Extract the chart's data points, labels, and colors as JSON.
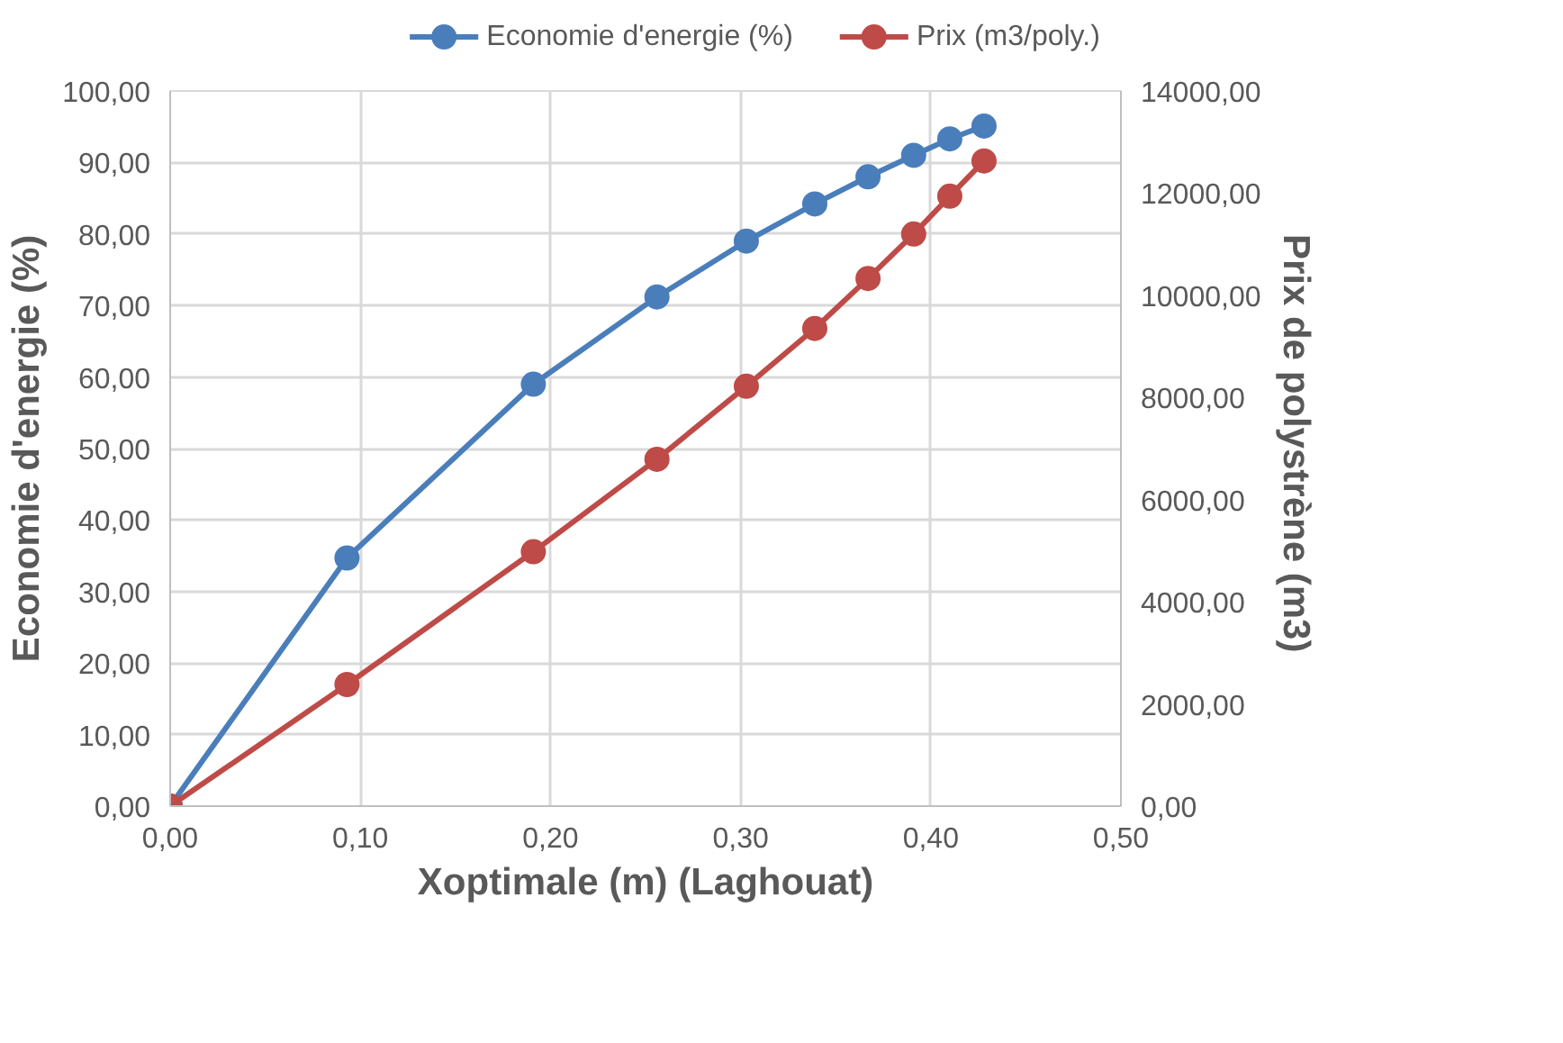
{
  "chart_data": {
    "type": "line",
    "xlabel": "Xoptimale (m) (Laghouat)",
    "ylabel": "Economie d'energie (%)",
    "y2label": "Prix  de polystrène (m3)",
    "x": [
      0,
      0.093,
      0.191,
      0.256,
      0.303,
      0.339,
      0.367,
      0.391,
      0.41,
      0.428
    ],
    "series": [
      {
        "name": "Economie d'energie (%)",
        "color": "#4a7ebb",
        "values": [
          0,
          34.7,
          59,
          71.2,
          79,
          84.2,
          88,
          91,
          93.3,
          95.1
        ]
      },
      {
        "name": "Prix (m3/poly.)",
        "color": "#be4b48",
        "axis": "y2",
        "values": [
          0,
          2380,
          4980,
          6790,
          8220,
          9350,
          10330,
          11200,
          11940,
          12630
        ]
      }
    ],
    "xlim": [
      0,
      0.5
    ],
    "xticks": [
      {
        "value": 0,
        "label": "0,00"
      },
      {
        "value": 0.1,
        "label": "0,10"
      },
      {
        "value": 0.2,
        "label": "0,20"
      },
      {
        "value": 0.3,
        "label": "0,30"
      },
      {
        "value": 0.4,
        "label": "0,40"
      },
      {
        "value": 0.5,
        "label": "0,50"
      }
    ],
    "ylim": [
      0,
      100
    ],
    "yticks": [
      {
        "value": 0,
        "label": "0,00"
      },
      {
        "value": 10,
        "label": "10,00"
      },
      {
        "value": 20,
        "label": "20,00"
      },
      {
        "value": 30,
        "label": "30,00"
      },
      {
        "value": 40,
        "label": "40,00"
      },
      {
        "value": 50,
        "label": "50,00"
      },
      {
        "value": 60,
        "label": "60,00"
      },
      {
        "value": 70,
        "label": "70,00"
      },
      {
        "value": 80,
        "label": "80,00"
      },
      {
        "value": 90,
        "label": "90,00"
      },
      {
        "value": 100,
        "label": "100,00"
      }
    ],
    "y2lim": [
      0,
      14000
    ],
    "y2ticks": [
      {
        "value": 0,
        "label": "0,00"
      },
      {
        "value": 2000,
        "label": "2000,00"
      },
      {
        "value": 4000,
        "label": "4000,00"
      },
      {
        "value": 6000,
        "label": "6000,00"
      },
      {
        "value": 8000,
        "label": "8000,00"
      },
      {
        "value": 10000,
        "label": "10000,00"
      },
      {
        "value": 12000,
        "label": "12000,00"
      },
      {
        "value": 14000,
        "label": "14000,00"
      }
    ],
    "grid": true,
    "legend": "top",
    "marker": "circle",
    "line_style": "solid"
  }
}
